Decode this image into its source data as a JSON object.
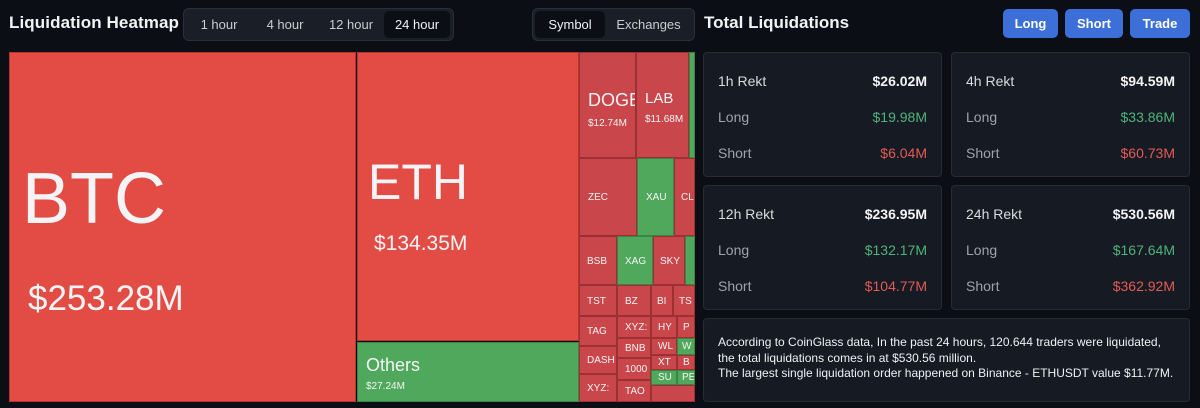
{
  "heatmap": {
    "title": "Liquidation Heatmap",
    "time_tabs": [
      "1 hour",
      "4 hour",
      "12 hour",
      "24 hour"
    ],
    "active_time": "24 hour",
    "view_tabs": [
      "Symbol",
      "Exchanges"
    ],
    "active_view": "Symbol"
  },
  "treemap": [
    {
      "name": "BTC",
      "value": "$253.28M"
    },
    {
      "name": "ETH",
      "value": "$134.35M"
    },
    {
      "name": "Others",
      "value": "$27.24M"
    },
    {
      "name": "DOGE",
      "value": "$12.74M"
    },
    {
      "name": "LAB",
      "value": "$11.68M"
    },
    {
      "name": "ZEC",
      "value": ""
    },
    {
      "name": "XAU",
      "value": ""
    },
    {
      "name": "CL",
      "value": ""
    },
    {
      "name": "BSB",
      "value": ""
    },
    {
      "name": "XAG",
      "value": ""
    },
    {
      "name": "SKY",
      "value": ""
    },
    {
      "name": "TST",
      "value": ""
    },
    {
      "name": "BZ",
      "value": ""
    },
    {
      "name": "BI",
      "value": ""
    },
    {
      "name": "TS",
      "value": ""
    },
    {
      "name": "TAG",
      "value": ""
    },
    {
      "name": "XYZ:",
      "value": ""
    },
    {
      "name": "HY",
      "value": ""
    },
    {
      "name": "P",
      "value": ""
    },
    {
      "name": "BNB",
      "value": ""
    },
    {
      "name": "WL",
      "value": ""
    },
    {
      "name": "W",
      "value": ""
    },
    {
      "name": "DASH",
      "value": ""
    },
    {
      "name": "XT",
      "value": ""
    },
    {
      "name": "B",
      "value": ""
    },
    {
      "name": "1000",
      "value": ""
    },
    {
      "name": "SU",
      "value": ""
    },
    {
      "name": "PE",
      "value": ""
    },
    {
      "name": "XYZ:",
      "value": ""
    },
    {
      "name": "TAO",
      "value": ""
    },
    {
      "name": "",
      "value": ""
    }
  ],
  "total": {
    "title": "Total Liquidations",
    "buttons": [
      "Long",
      "Short",
      "Trade"
    ],
    "cards": [
      {
        "label": "1h Rekt",
        "total": "$26.02M",
        "long_label": "Long",
        "long": "$19.98M",
        "short_label": "Short",
        "short": "$6.04M"
      },
      {
        "label": "4h Rekt",
        "total": "$94.59M",
        "long_label": "Long",
        "long": "$33.86M",
        "short_label": "Short",
        "short": "$60.73M"
      },
      {
        "label": "12h Rekt",
        "total": "$236.95M",
        "long_label": "Long",
        "long": "$132.17M",
        "short_label": "Short",
        "short": "$104.77M"
      },
      {
        "label": "24h Rekt",
        "total": "$530.56M",
        "long_label": "Long",
        "long": "$167.64M",
        "short_label": "Short",
        "short": "$362.92M"
      }
    ],
    "summary_lines": [
      "According to CoinGlass data, In the past 24 hours, 120.644 traders were liquidated, the total liquidations comes in at $530.56 million.",
      "The largest single liquidation order happened on Binance - ETHUSDT value $11.77M."
    ]
  },
  "colors": {
    "loss": "#e24c44",
    "loss_dark": "#c9464a",
    "gain": "#4fa85c",
    "accent": "#3c6fd8",
    "long_text": "#4fb37c",
    "short_text": "#e25b55"
  }
}
